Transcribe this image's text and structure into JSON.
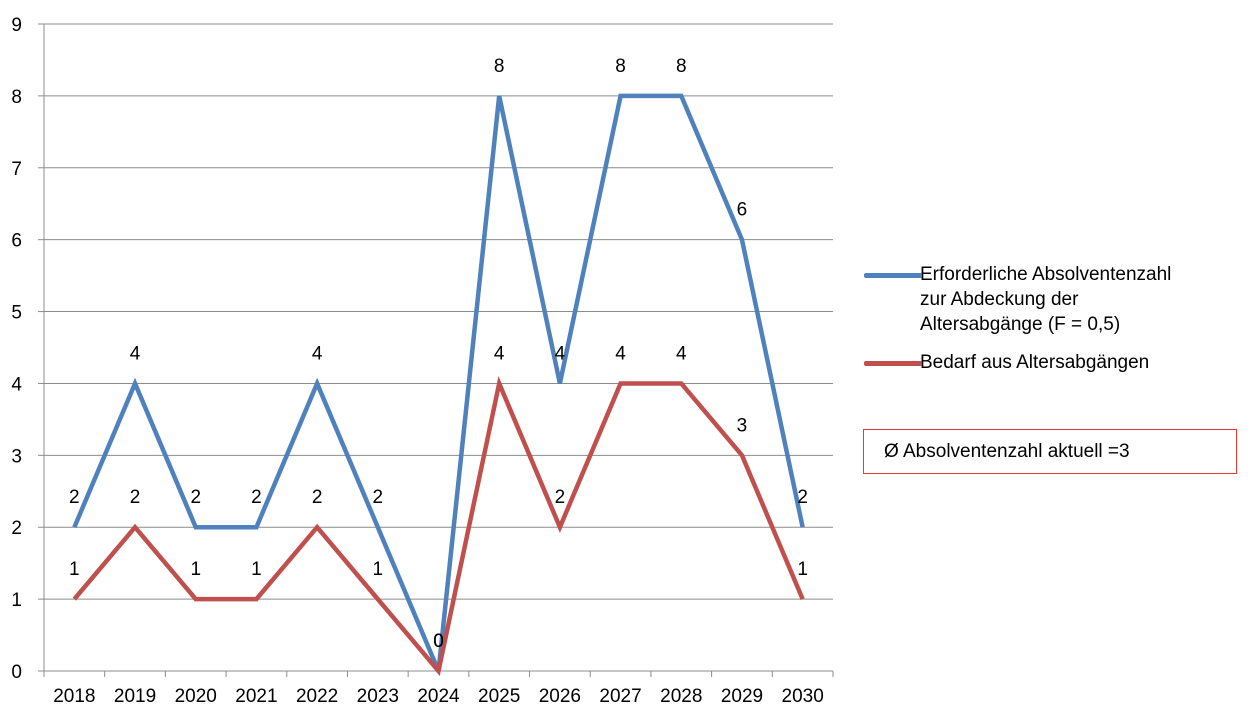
{
  "chart_data": {
    "type": "line",
    "categories": [
      "2018",
      "2019",
      "2020",
      "2021",
      "2022",
      "2023",
      "2024",
      "2025",
      "2026",
      "2027",
      "2028",
      "2029",
      "2030"
    ],
    "series": [
      {
        "name": "Erforderliche Absolventenzahl zur Abdeckung der Altersabgänge (F = 0,5)",
        "legend_lines": [
          "Erforderliche Absolventenzahl",
          "zur Abdeckung der",
          "Altersabgänge (F = 0,5)"
        ],
        "color": "#4f81bd",
        "values": [
          2,
          4,
          2,
          2,
          4,
          2,
          0,
          8,
          4,
          8,
          8,
          6,
          2
        ]
      },
      {
        "name": "Bedarf aus Altersabgängen",
        "legend_lines": [
          "Bedarf aus Altersabgängen"
        ],
        "color": "#c0504d",
        "values": [
          1,
          2,
          1,
          1,
          2,
          1,
          0,
          4,
          2,
          4,
          4,
          3,
          1
        ]
      }
    ],
    "ylim": [
      0,
      9
    ],
    "yticks": [
      0,
      1,
      2,
      3,
      4,
      5,
      6,
      7,
      8,
      9
    ],
    "grid": true,
    "legend_position": "right",
    "data_labels": true,
    "title": "",
    "xlabel": "",
    "ylabel": ""
  },
  "annotation": {
    "label": "Ø Absolventenzahl aktuell =",
    "value": "3",
    "border_color": "#e53935"
  }
}
